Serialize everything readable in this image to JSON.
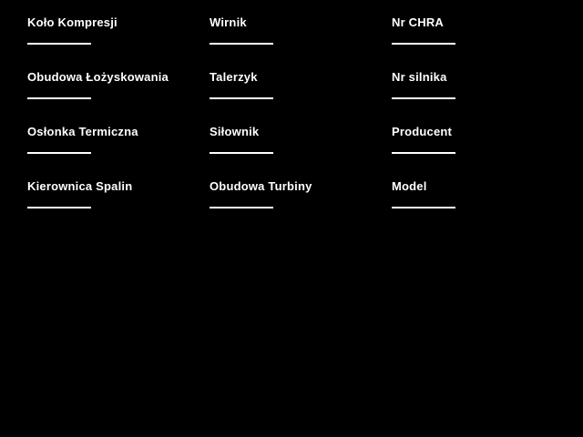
{
  "theme": {
    "background_color": "#000000",
    "label_color": "#ffffff",
    "underline_color": "#ffffff"
  },
  "form": {
    "columns": [
      {
        "fields": [
          {
            "label": "Koło Kompresji",
            "value": "",
            "placeholder": ""
          },
          {
            "label": "Obudowa Łożyskowania",
            "value": "",
            "placeholder": ""
          },
          {
            "label": "Osłonka Termiczna",
            "value": "",
            "placeholder": ""
          },
          {
            "label": "Kierownica Spalin",
            "value": "",
            "placeholder": ""
          }
        ]
      },
      {
        "fields": [
          {
            "label": "Wirnik",
            "value": "",
            "placeholder": ""
          },
          {
            "label": "Talerzyk",
            "value": "",
            "placeholder": ""
          },
          {
            "label": "Siłownik",
            "value": "",
            "placeholder": ""
          },
          {
            "label": "Obudowa Turbiny",
            "value": "",
            "placeholder": ""
          }
        ]
      },
      {
        "fields": [
          {
            "label": "Nr CHRA",
            "value": "",
            "placeholder": ""
          },
          {
            "label": "Nr silnika",
            "value": "",
            "placeholder": ""
          },
          {
            "label": "Producent",
            "value": "",
            "placeholder": ""
          },
          {
            "label": "Model",
            "value": "",
            "placeholder": ""
          }
        ]
      }
    ]
  }
}
